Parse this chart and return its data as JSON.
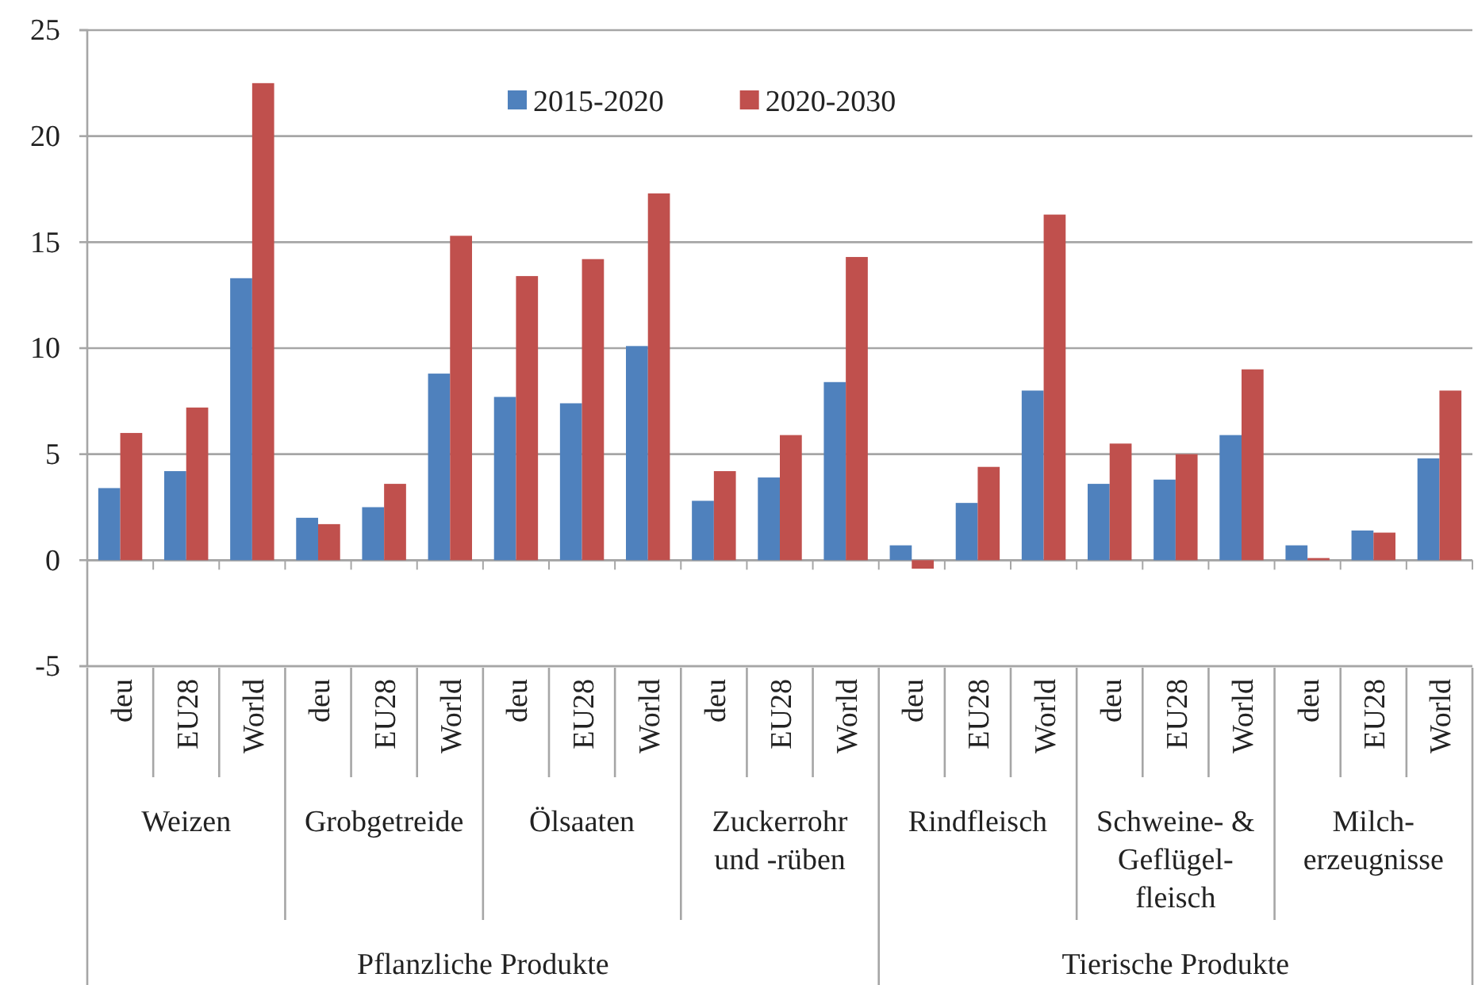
{
  "chart_data": {
    "type": "bar",
    "categories": [
      "deu",
      "EU28",
      "World",
      "deu",
      "EU28",
      "World",
      "deu",
      "EU28",
      "World",
      "deu",
      "EU28",
      "World",
      "deu",
      "EU28",
      "World",
      "deu",
      "EU28",
      "World",
      "deu",
      "EU28",
      "World"
    ],
    "series": [
      {
        "name": "2015-2020",
        "color": "#4f81bd",
        "values": [
          3.4,
          4.2,
          13.3,
          2.0,
          2.5,
          8.8,
          7.7,
          7.4,
          10.1,
          2.8,
          3.9,
          8.4,
          0.7,
          2.7,
          8.0,
          3.6,
          3.8,
          5.9,
          0.7,
          1.4,
          4.8
        ]
      },
      {
        "name": "2020-2030",
        "color": "#c0504d",
        "values": [
          6.0,
          7.2,
          22.5,
          1.7,
          3.6,
          15.3,
          13.4,
          14.2,
          17.3,
          4.2,
          5.9,
          14.3,
          -0.4,
          4.4,
          16.3,
          5.5,
          5.0,
          9.0,
          0.1,
          1.3,
          8.0
        ]
      }
    ],
    "ylim": [
      -5,
      25
    ],
    "yticks": [
      -5,
      0,
      5,
      10,
      15,
      20,
      25
    ],
    "grid": "y",
    "legend": "top",
    "annotations": [
      "Weizen",
      "Grobgetreide",
      "Ölsaaten",
      "Zuckerrohr\nund -rüben",
      "Rindfleisch",
      "Schweine- &\nGeflügel-\nfleisch",
      "Milch-\nerzeugnisse",
      "Pflanzliche Produkte",
      "Tierische Produkte"
    ]
  }
}
